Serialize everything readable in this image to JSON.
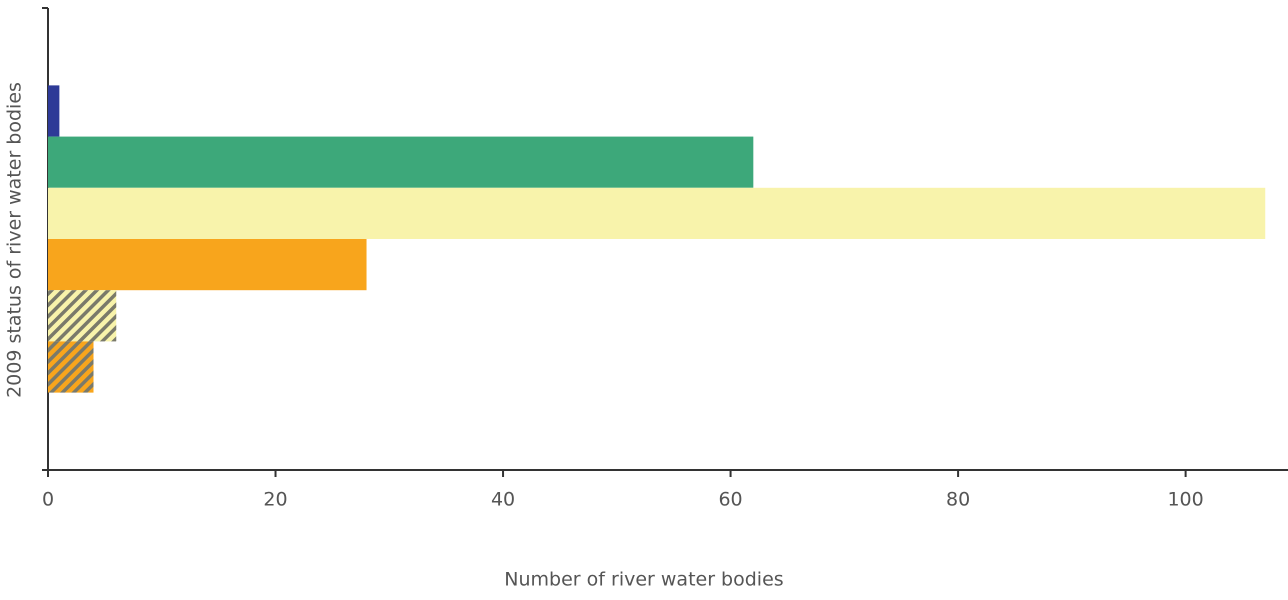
{
  "chart_data": {
    "type": "bar",
    "orientation": "horizontal",
    "x_label": "Number of river water bodies",
    "y_label": "2009 status of river water bodies",
    "categories": [
      null
    ],
    "series": [
      {
        "color": "#2e3a97",
        "hatch": false,
        "values": [
          1
        ]
      },
      {
        "color": "#3da87a",
        "hatch": false,
        "values": [
          62
        ]
      },
      {
        "color": "#f8f3ab",
        "hatch": false,
        "values": [
          107
        ]
      },
      {
        "color": "#f8a51c",
        "hatch": false,
        "values": [
          28
        ]
      },
      {
        "color": "#f8f3ab",
        "hatch": true,
        "values": [
          6
        ]
      },
      {
        "color": "#f8a51c",
        "hatch": true,
        "values": [
          4
        ]
      }
    ],
    "xlim": [
      0,
      109
    ],
    "xticks": [
      0,
      20,
      40,
      60,
      80,
      100
    ],
    "grid": false
  }
}
